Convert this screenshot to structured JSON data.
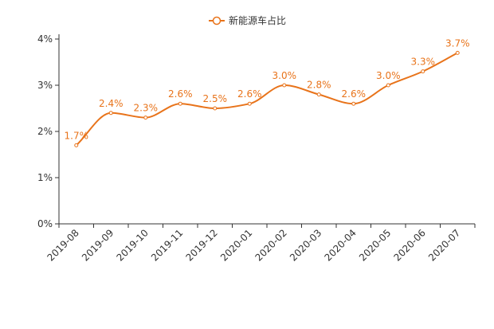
{
  "chart_data": {
    "type": "line",
    "categories": [
      "2019-08",
      "2019-09",
      "2019-10",
      "2019-11",
      "2019-12",
      "2020-01",
      "2020-02",
      "2020-03",
      "2020-04",
      "2020-05",
      "2020-06",
      "2020-07"
    ],
    "series": [
      {
        "name": "新能源车占比",
        "values": [
          1.7,
          2.4,
          2.3,
          2.6,
          2.5,
          2.6,
          3.0,
          2.8,
          2.6,
          3.0,
          3.3,
          3.7
        ]
      }
    ],
    "data_labels": [
      "1.7%",
      "2.4%",
      "2.3%",
      "2.6%",
      "2.5%",
      "2.6%",
      "3.0%",
      "2.8%",
      "2.6%",
      "3.0%",
      "3.3%",
      "3.7%"
    ],
    "y_ticks": [
      0,
      1,
      2,
      3,
      4
    ],
    "y_tick_labels": [
      "0%",
      "1%",
      "2%",
      "3%",
      "4%"
    ],
    "ylim": [
      0,
      4
    ],
    "grid": false,
    "smooth": true,
    "legend_position": "top-center",
    "colors": {
      "series": "#e8731a",
      "axis": "#333333"
    }
  }
}
